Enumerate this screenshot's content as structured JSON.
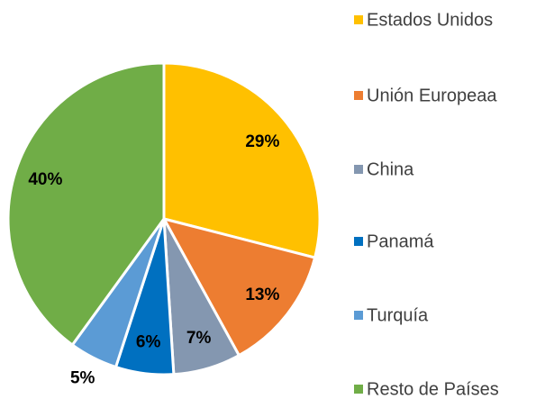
{
  "chart_data": {
    "type": "pie",
    "categories": [
      "Estados Unidos",
      "Unión Europeaa",
      "China",
      "Panamá",
      "Turquía",
      "Resto de Países"
    ],
    "values": [
      29,
      13,
      7,
      6,
      5,
      40
    ],
    "value_labels": [
      "29%",
      "13%",
      "7%",
      "6%",
      "5%",
      "40%"
    ],
    "colors": [
      "#FFC000",
      "#ED7D31",
      "#8497B0",
      "#0070C0",
      "#5B9BD5",
      "#70AD47"
    ],
    "legend": "right"
  }
}
